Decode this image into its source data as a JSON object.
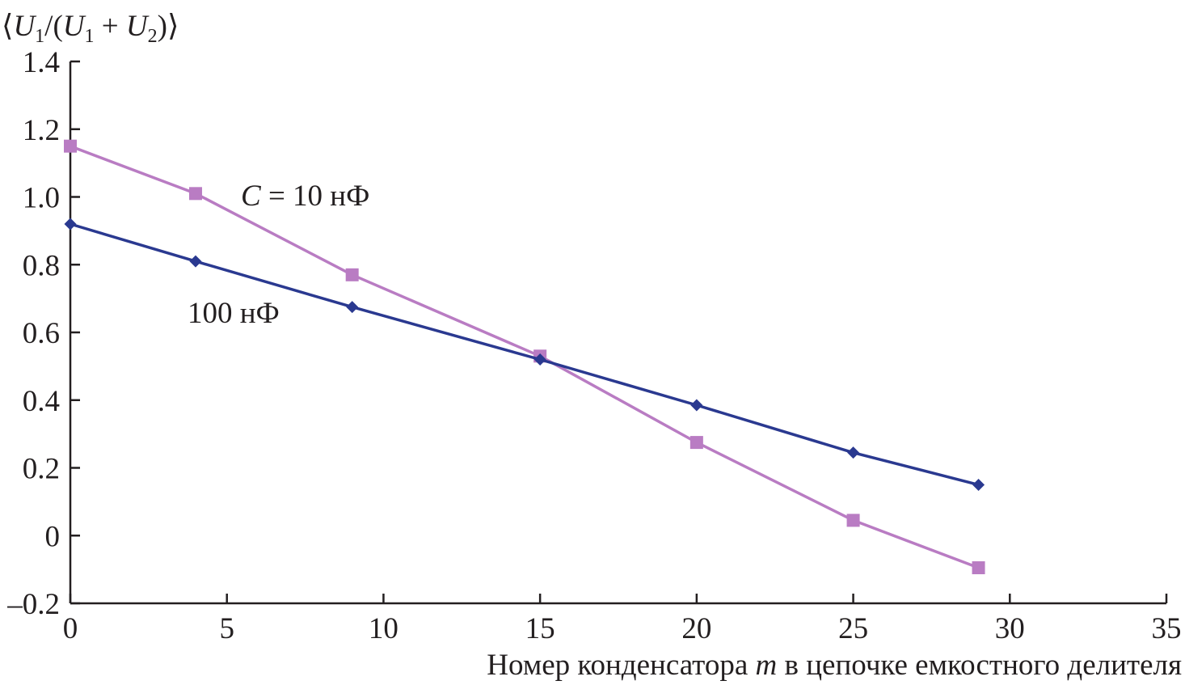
{
  "chart_data": {
    "type": "line",
    "title": "",
    "ylabel": {
      "prefix": "⟨",
      "u": "U",
      "sub1": "1",
      "mid": "/(",
      "sub1b": "1",
      "plus": " + ",
      "sub2": "2",
      "suffix": ")⟩"
    },
    "xlabel": {
      "before": "Номер конденсатора ",
      "var": "m",
      "after": " в цепочке емкостного делителя"
    },
    "xlim": [
      0,
      35
    ],
    "ylim": [
      -0.2,
      1.4
    ],
    "xticks": [
      "0",
      "5",
      "10",
      "15",
      "20",
      "25",
      "30",
      "35"
    ],
    "yticks": [
      "1.4",
      "1.2",
      "1.0",
      "0.8",
      "0.6",
      "0.4",
      "0.2",
      "0",
      "–0.2"
    ],
    "grid": false,
    "series": [
      {
        "name": "100 нФ",
        "color": "#2a3990",
        "marker": "diamond",
        "x": [
          0,
          4,
          9,
          15,
          20,
          25,
          29
        ],
        "y": [
          0.92,
          0.81,
          0.675,
          0.52,
          0.385,
          0.245,
          0.15
        ]
      },
      {
        "name": "C = 10 нФ",
        "color": "#b97cc3",
        "marker": "square",
        "x": [
          0,
          4,
          9,
          15,
          20,
          25,
          29
        ],
        "y": [
          1.15,
          1.01,
          0.77,
          0.53,
          0.275,
          0.045,
          -0.095
        ]
      }
    ],
    "annotations": {
      "series_10nF": {
        "var": "C",
        "text": " = 10 нФ"
      },
      "series_100nF": {
        "text": "100 нФ"
      }
    }
  }
}
